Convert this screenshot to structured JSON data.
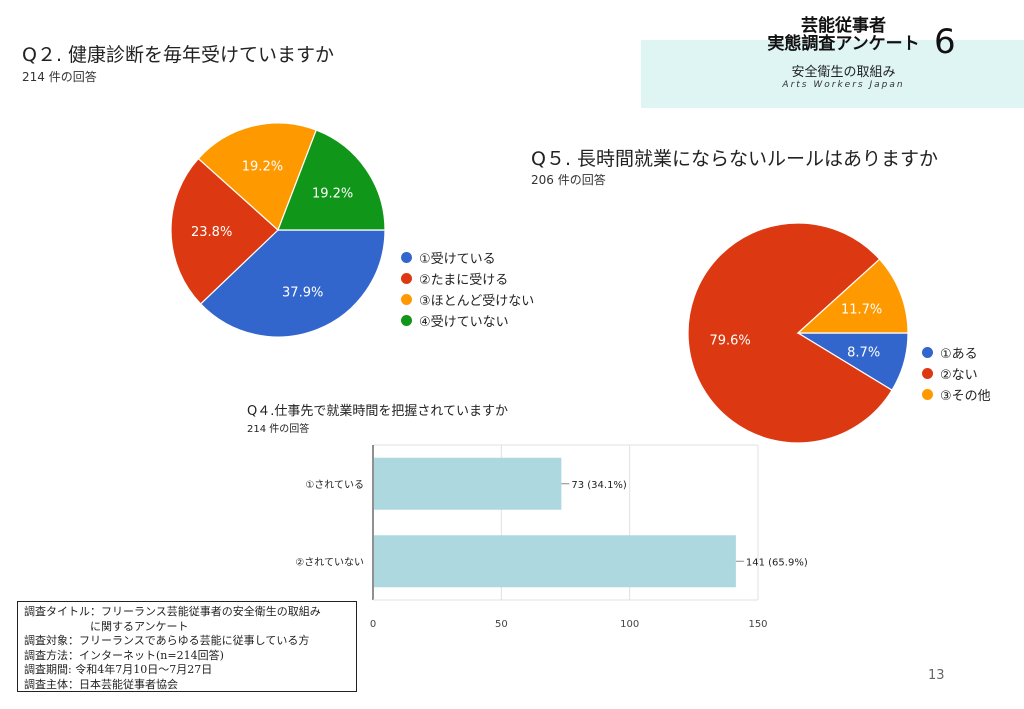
{
  "brand": {
    "title_line1": "芸能従事者",
    "title_line2": "実態調査アンケート",
    "issue_number": "6",
    "subtitle": "安全衛生の取組み",
    "org": "Arts Workers Japan"
  },
  "page_number": "13",
  "survey_notes": [
    "調査タイトル：フリーランス芸能従事者の安全衛生の取組み",
    "　　　　　　に関するアンケート",
    "調査対象：フリーランスであらゆる芸能に従事している方",
    "調査方法：インターネット(n=214回答)",
    "調査期間: 令和4年7月10日〜7月27日",
    "調査主体：日本芸能従事者協会"
  ],
  "chart_data": [
    {
      "type": "pie",
      "title": "Q２. 健康診断を毎年受けていますか",
      "subtitle": "214 件の回答",
      "slices": [
        {
          "label": "①受けている",
          "value": 37.9,
          "display": "37.9%",
          "color": "#3366cc"
        },
        {
          "label": "②たまに受ける",
          "value": 23.8,
          "display": "23.8%",
          "color": "#dc3912"
        },
        {
          "label": "③ほとんど受けない",
          "value": 19.2,
          "display": "19.2%",
          "color": "#ff9900"
        },
        {
          "label": "④受けていない",
          "value": 19.2,
          "display": "19.2%",
          "color": "#109618"
        }
      ]
    },
    {
      "type": "pie",
      "title": "Q５. 長時間就業にならないルールはありますか",
      "subtitle": "206 件の回答",
      "slices": [
        {
          "label": "①ある",
          "value": 8.7,
          "display": "8.7%",
          "color": "#3366cc"
        },
        {
          "label": "②ない",
          "value": 79.6,
          "display": "79.6%",
          "color": "#dc3912"
        },
        {
          "label": "③その他",
          "value": 11.7,
          "display": "11.7%",
          "color": "#ff9900"
        }
      ]
    },
    {
      "type": "bar",
      "orientation": "horizontal",
      "title": "Q４.仕事先で就業時間を把握されていますか",
      "subtitle": "214 件の回答",
      "categories": [
        "①されている",
        "②されていない"
      ],
      "values": [
        73,
        141
      ],
      "value_labels": [
        "73 (34.1%)",
        "141 (65.9%)"
      ],
      "xlim": [
        0,
        150
      ],
      "xticks": [
        "0",
        "50",
        "100",
        "150"
      ],
      "bar_color": "#aed8e0",
      "grid": true
    }
  ]
}
